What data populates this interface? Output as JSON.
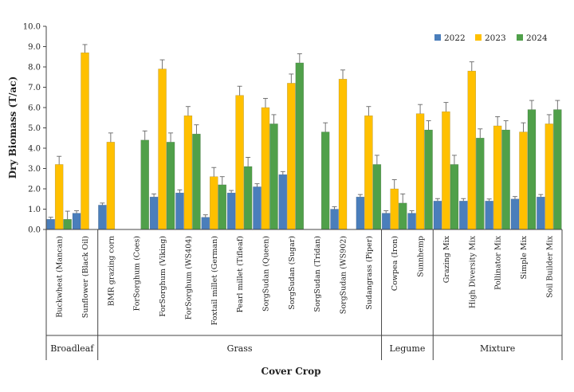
{
  "chart_data": {
    "type": "bar",
    "title": "",
    "xlabel": "Cover Crop",
    "ylabel": "Dry Biomass  (T/ac)",
    "ylim": [
      0,
      10
    ],
    "yticks": [
      "0.0",
      "1.0",
      "2.0",
      "3.0",
      "4.0",
      "5.0",
      "6.0",
      "7.0",
      "8.0",
      "9.0",
      "10.0"
    ],
    "grid": false,
    "legend_position": "top-right",
    "categories": [
      "Buckwheat (Mancan)",
      "Sunflower (Black Oil)",
      "BMR grazing corn",
      "ForSorghum (Coes)",
      "ForSorghum (Viking)",
      "ForSorghum (WS404)",
      "Foxtail millet (German)",
      "Pearl millet (Tifleaf)",
      "SorgSudan (Queen)",
      "SorgSudan (Sugar)",
      "SorgSudan (Tridan)",
      "SorgSudan (WS902)",
      "Sudangrass (Piper)",
      "Cowpea (Iron)",
      "Sunnhemp",
      "Grazing Mix",
      "High Diversity Mix",
      "Pollinator Mix",
      "Simple Mix",
      "Soil Builder Mix"
    ],
    "groups": [
      {
        "name": "Broadleaf",
        "start": 0,
        "end": 1
      },
      {
        "name": "Grass",
        "start": 2,
        "end": 12
      },
      {
        "name": "Legume",
        "start": 13,
        "end": 14
      },
      {
        "name": "Mixture",
        "start": 15,
        "end": 19
      }
    ],
    "series": [
      {
        "name": "2022",
        "color": "#4a7ebb",
        "values": [
          0.5,
          0.8,
          1.2,
          null,
          1.6,
          1.8,
          0.6,
          1.8,
          2.1,
          2.7,
          null,
          1.0,
          1.6,
          0.8,
          0.8,
          1.4,
          1.4,
          1.4,
          1.5,
          1.6
        ],
        "errors": [
          0.1,
          0.12,
          0.1,
          null,
          0.15,
          0.15,
          0.12,
          0.12,
          0.15,
          0.15,
          null,
          0.12,
          0.12,
          0.12,
          0.12,
          0.12,
          0.12,
          0.1,
          0.12,
          0.12
        ]
      },
      {
        "name": "2023",
        "color": "#ffc000",
        "values": [
          3.2,
          8.7,
          4.3,
          null,
          7.9,
          5.6,
          2.6,
          6.6,
          6.0,
          7.2,
          null,
          7.4,
          5.6,
          2.0,
          5.7,
          5.8,
          7.8,
          5.1,
          4.8,
          5.2
        ],
        "errors": [
          0.4,
          0.4,
          0.45,
          null,
          0.45,
          0.45,
          0.45,
          0.45,
          0.45,
          0.45,
          null,
          0.45,
          0.45,
          0.45,
          0.45,
          0.45,
          0.45,
          0.45,
          0.45,
          0.45
        ]
      },
      {
        "name": "2024",
        "color": "#50a04a",
        "values": [
          0.5,
          null,
          null,
          4.4,
          4.3,
          4.7,
          2.2,
          3.1,
          5.2,
          8.2,
          4.8,
          null,
          3.2,
          1.3,
          4.9,
          3.2,
          4.5,
          4.9,
          5.9,
          5.9
        ],
        "errors": [
          0.4,
          null,
          null,
          0.45,
          0.45,
          0.45,
          0.4,
          0.45,
          0.45,
          0.45,
          0.45,
          null,
          0.45,
          0.45,
          0.45,
          0.45,
          0.45,
          0.45,
          0.45,
          0.45
        ]
      }
    ]
  }
}
